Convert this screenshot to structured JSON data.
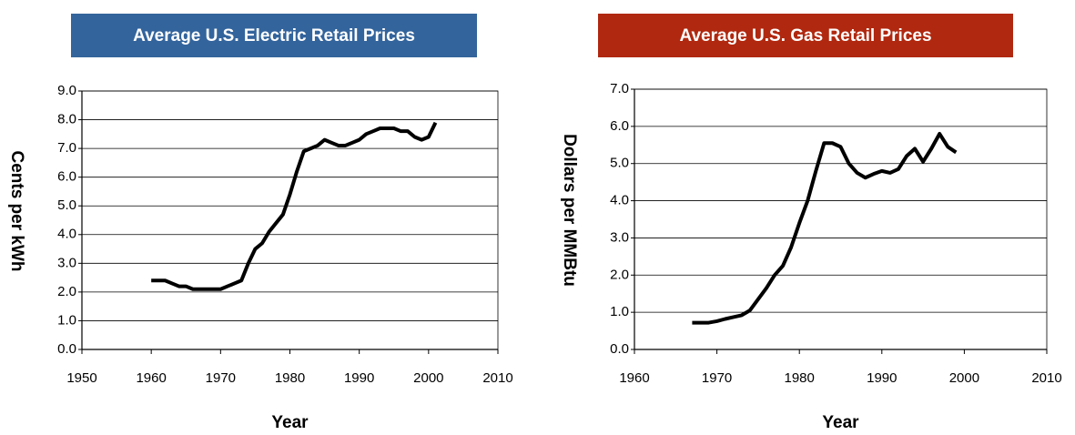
{
  "chart_data": [
    {
      "type": "line",
      "title": "Average U.S. Electric Retail Prices",
      "title_color": "#33649c",
      "x_label": "Year",
      "y_label": "Cents per kWh",
      "xlim": [
        1950,
        2010
      ],
      "xticks": [
        1950,
        1960,
        1970,
        1980,
        1990,
        2000,
        2010
      ],
      "ylim": [
        0,
        9
      ],
      "yticks": [
        {
          "value": 0,
          "label": "0.0"
        },
        {
          "value": 1,
          "label": "1.0"
        },
        {
          "value": 2,
          "label": "2.0"
        },
        {
          "value": 3,
          "label": "3.0"
        },
        {
          "value": 4,
          "label": "4.0"
        },
        {
          "value": 5,
          "label": "5.0"
        },
        {
          "value": 6,
          "label": "6.0"
        },
        {
          "value": 7,
          "label": "7.0"
        },
        {
          "value": 8,
          "label": "8.0"
        },
        {
          "value": 9,
          "label": "9.0"
        }
      ],
      "grid": true,
      "x": [
        1960,
        1961,
        1962,
        1963,
        1964,
        1965,
        1966,
        1967,
        1968,
        1969,
        1970,
        1971,
        1972,
        1973,
        1974,
        1975,
        1976,
        1977,
        1978,
        1979,
        1980,
        1981,
        1982,
        1983,
        1984,
        1985,
        1986,
        1987,
        1988,
        1989,
        1990,
        1991,
        1992,
        1993,
        1994,
        1995,
        1996,
        1997,
        1998,
        1999,
        2000,
        2001
      ],
      "series": [
        {
          "name": "Electric",
          "color": "#000000",
          "values": [
            2.4,
            2.4,
            2.4,
            2.3,
            2.2,
            2.2,
            2.1,
            2.1,
            2.1,
            2.1,
            2.1,
            2.2,
            2.3,
            2.4,
            3.0,
            3.5,
            3.7,
            4.1,
            4.4,
            4.7,
            5.4,
            6.2,
            6.9,
            7.0,
            7.1,
            7.3,
            7.2,
            7.1,
            7.1,
            7.2,
            7.3,
            7.5,
            7.6,
            7.7,
            7.7,
            7.7,
            7.6,
            7.6,
            7.4,
            7.3,
            7.4,
            7.9
          ]
        }
      ]
    },
    {
      "type": "line",
      "title": "Average U.S. Gas Retail Prices",
      "title_color": "#b0280f",
      "x_label": "Year",
      "y_label": "Dollars per MMBtu",
      "xlim": [
        1960,
        2010
      ],
      "xticks": [
        1960,
        1970,
        1980,
        1990,
        2000,
        2010
      ],
      "ylim": [
        0,
        7
      ],
      "yticks": [
        {
          "value": 0,
          "label": "0.0"
        },
        {
          "value": 1,
          "label": "1.0"
        },
        {
          "value": 2,
          "label": "2.0"
        },
        {
          "value": 3,
          "label": "3.0"
        },
        {
          "value": 4,
          "label": "4.0"
        },
        {
          "value": 5,
          "label": "5.0"
        },
        {
          "value": 6,
          "label": "6.0"
        },
        {
          "value": 7,
          "label": "7.0"
        }
      ],
      "grid": true,
      "x": [
        1967,
        1968,
        1969,
        1970,
        1971,
        1972,
        1973,
        1974,
        1975,
        1976,
        1977,
        1978,
        1979,
        1980,
        1981,
        1982,
        1983,
        1984,
        1985,
        1986,
        1987,
        1988,
        1989,
        1990,
        1991,
        1992,
        1993,
        1994,
        1995,
        1996,
        1997,
        1998,
        1999
      ],
      "series": [
        {
          "name": "Gas",
          "color": "#000000",
          "values": [
            0.72,
            0.72,
            0.72,
            0.76,
            0.82,
            0.87,
            0.92,
            1.05,
            1.35,
            1.65,
            2.0,
            2.25,
            2.75,
            3.4,
            4.0,
            4.8,
            5.55,
            5.55,
            5.45,
            5.0,
            4.75,
            4.62,
            4.72,
            4.8,
            4.75,
            4.85,
            5.2,
            5.4,
            5.05,
            5.4,
            5.8,
            5.45,
            5.3
          ]
        }
      ]
    }
  ]
}
